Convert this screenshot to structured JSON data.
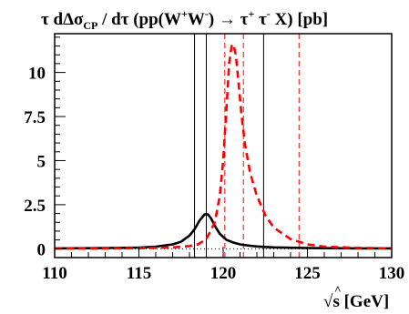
{
  "chart_data": {
    "type": "line",
    "title": "τ dΔσ_CP / dτ (pp(W⁺W⁻) → τ⁺ τ⁻ X) [pb]",
    "title_parts": {
      "tau": "τ",
      "d1": " dΔσ",
      "sub_cp": "CP",
      "slash": " / dτ (pp(W",
      "sup_plus": "+",
      "w": "W",
      "sup_minus": "-",
      "arrow": ") → τ",
      "sup_plus2": "+",
      "tau2": " τ",
      "sup_minus2": "-",
      "end": " X) [pb]"
    },
    "xlabel": "√ŝ [GeV]",
    "xlabel_parts": {
      "sqrt": "√",
      "s": "s",
      "hat": "^",
      "unit": " [GeV]"
    },
    "ylabel": "",
    "xlim": [
      110,
      130
    ],
    "ylim": [
      -0.5,
      12.2
    ],
    "x_ticks": [
      110,
      115,
      120,
      125,
      130
    ],
    "x_tick_labels": [
      "110",
      "115",
      "120",
      "125",
      "130"
    ],
    "y_ticks": [
      0,
      2.5,
      5,
      7.5,
      10
    ],
    "y_tick_labels": [
      "0",
      "2.5",
      "5",
      "7.5",
      "10"
    ],
    "grid": false,
    "vertical_lines": [
      {
        "x": 118.3,
        "style": "solid",
        "color": "#000000"
      },
      {
        "x": 119.0,
        "style": "solid",
        "color": "#000000"
      },
      {
        "x": 122.4,
        "style": "solid",
        "color": "#000000"
      },
      {
        "x": 120.1,
        "style": "dashed",
        "color": "#ff0000"
      },
      {
        "x": 121.2,
        "style": "dashed",
        "color": "#ff0000"
      },
      {
        "x": 124.5,
        "style": "dashed",
        "color": "#ff0000"
      }
    ],
    "zero_line": {
      "y": 0,
      "style": "dotted"
    },
    "series": [
      {
        "style": "solid",
        "color": "#000000",
        "x": [
          110,
          112,
          114,
          115,
          116,
          117,
          117.5,
          118,
          118.3,
          118.6,
          118.9,
          119.1,
          119.3,
          119.5,
          119.8,
          120.2,
          120.6,
          121,
          121.5,
          122,
          123,
          124,
          125,
          126,
          128,
          130
        ],
        "values": [
          0.02,
          0.03,
          0.05,
          0.07,
          0.12,
          0.25,
          0.4,
          0.75,
          1.1,
          1.6,
          1.95,
          1.95,
          1.7,
          1.3,
          0.85,
          0.5,
          0.35,
          0.25,
          0.18,
          0.13,
          0.08,
          0.06,
          0.04,
          0.03,
          0.02,
          0.02
        ]
      },
      {
        "style": "dashed",
        "color": "#ff0000",
        "x": [
          110,
          112,
          114,
          115,
          116,
          117,
          118,
          118.5,
          119,
          119.5,
          119.8,
          120.0,
          120.2,
          120.35,
          120.5,
          120.6,
          120.75,
          120.9,
          121.1,
          121.3,
          121.6,
          122,
          122.5,
          123,
          124,
          125,
          126,
          128,
          130
        ],
        "values": [
          0.01,
          0.01,
          0.02,
          0.03,
          0.05,
          0.08,
          0.15,
          0.25,
          0.55,
          1.5,
          3.0,
          5.0,
          8.0,
          10.5,
          11.5,
          11.6,
          11.0,
          9.5,
          7.5,
          5.9,
          4.3,
          3.0,
          1.9,
          1.2,
          0.55,
          0.25,
          0.12,
          0.05,
          0.02
        ]
      }
    ]
  }
}
